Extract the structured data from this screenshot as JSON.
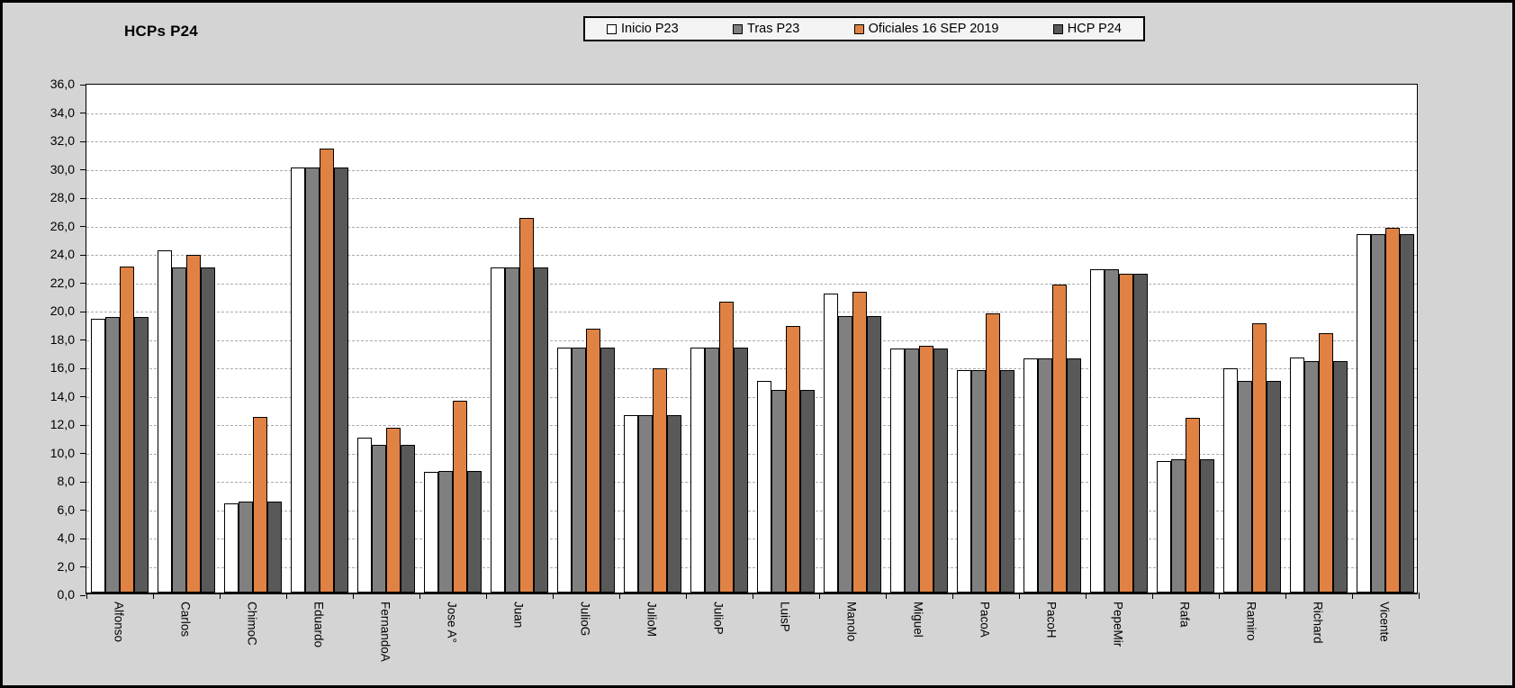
{
  "title": "HCPs P24",
  "chart_data": {
    "type": "bar",
    "title": "HCPs P24",
    "categories": [
      "Alfonso",
      "Carlos",
      "ChimoC",
      "Eduardo",
      "FernandoA",
      "Jose A°",
      "Juan",
      "JulioG",
      "JulioM",
      "JulioP",
      "LuisP",
      "Manolo",
      "Miguel",
      "PacoA",
      "PacoH",
      "PepeMir",
      "Rafa",
      "Ramiro",
      "Richard",
      "Vicente"
    ],
    "series": [
      {
        "name": "Inicio P23",
        "color": "#FFFFFF",
        "values": [
          19.3,
          24.1,
          6.3,
          30.0,
          10.9,
          8.5,
          22.9,
          17.3,
          12.5,
          17.3,
          14.9,
          21.1,
          17.2,
          15.7,
          16.5,
          22.8,
          9.3,
          15.8,
          16.6,
          25.3
        ]
      },
      {
        "name": "Tras P23",
        "color": "#808080",
        "values": [
          19.4,
          22.9,
          6.4,
          30.0,
          10.4,
          8.6,
          22.9,
          17.3,
          12.5,
          17.3,
          14.3,
          19.5,
          17.2,
          15.7,
          16.5,
          22.8,
          9.4,
          14.9,
          16.3,
          25.3
        ]
      },
      {
        "name": "Oficiales 16 SEP 2019",
        "color": "#E08244",
        "values": [
          23.0,
          23.8,
          12.4,
          31.3,
          11.6,
          13.5,
          26.4,
          18.6,
          15.8,
          20.5,
          18.8,
          21.2,
          17.4,
          19.7,
          21.7,
          22.5,
          12.3,
          19.0,
          18.3,
          25.7
        ]
      },
      {
        "name": "HCP P24",
        "color": "#595959",
        "values": [
          19.4,
          22.9,
          6.4,
          30.0,
          10.4,
          8.6,
          22.9,
          17.3,
          12.5,
          17.3,
          14.3,
          19.5,
          17.2,
          15.7,
          16.5,
          22.5,
          9.4,
          14.9,
          16.3,
          25.3
        ]
      }
    ],
    "ylim": [
      0,
      36
    ],
    "ytick_step": 2,
    "ytick_decimal_separator": ",",
    "grid": "horizontal-dashed",
    "legend_position": "top-center",
    "plot_background": "#FFFFFF",
    "chart_background": "#D4D4D4",
    "gridline_color": "#ABABAB"
  }
}
